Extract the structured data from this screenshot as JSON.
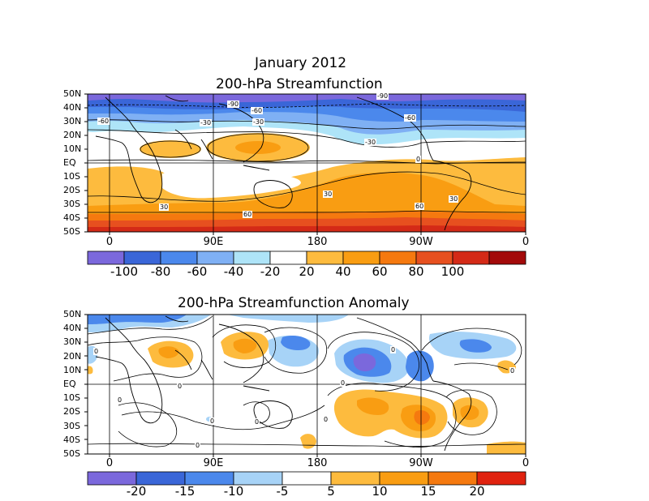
{
  "figure": {
    "title_line1": "January 2012",
    "title_line2": "200-hPa Streamfunction"
  },
  "map1": {
    "title": "200-hPa Streamfunction",
    "lat_labels": [
      "50N",
      "40N",
      "30N",
      "20N",
      "10N",
      "EQ",
      "10S",
      "20S",
      "30S",
      "40S",
      "50S"
    ],
    "lon_labels": [
      "0",
      "90E",
      "180",
      "90W",
      "0"
    ],
    "contour_labels": [
      "-90",
      "-90",
      "-60",
      "-60",
      "-60",
      "-30",
      "-30",
      "-30",
      "0",
      "30",
      "30",
      "30",
      "60",
      "60"
    ],
    "colorbar": {
      "tick_labels": [
        "-100",
        "-80",
        "-60",
        "-40",
        "-20",
        "20",
        "40",
        "60",
        "80",
        "100"
      ],
      "colors": [
        "#7b68dc",
        "#3a66d8",
        "#4b88ec",
        "#7fb0f4",
        "#aee4f8",
        "#ffffff",
        "#fdbb3e",
        "#f99d12",
        "#f5790f",
        "#e7501f",
        "#d42a17",
        "#a30a0a"
      ]
    }
  },
  "map2": {
    "title": "200-hPa Streamfunction Anomaly",
    "lat_labels": [
      "50N",
      "40N",
      "30N",
      "20N",
      "10N",
      "EQ",
      "10S",
      "20S",
      "30S",
      "40S",
      "50S"
    ],
    "lon_labels": [
      "0",
      "90E",
      "180",
      "90W",
      "0"
    ],
    "contour_labels": [
      "0",
      "0",
      "0",
      "0",
      "0",
      "0",
      "0",
      "0",
      "0",
      "0"
    ],
    "colorbar": {
      "tick_labels": [
        "-20",
        "-15",
        "-10",
        "-5",
        "5",
        "10",
        "15",
        "20"
      ],
      "colors": [
        "#7b68dc",
        "#3a66d8",
        "#4b88ec",
        "#a7d3f7",
        "#ffffff",
        "#fdbb3e",
        "#f99d12",
        "#f5790f",
        "#e0220f"
      ]
    }
  }
}
